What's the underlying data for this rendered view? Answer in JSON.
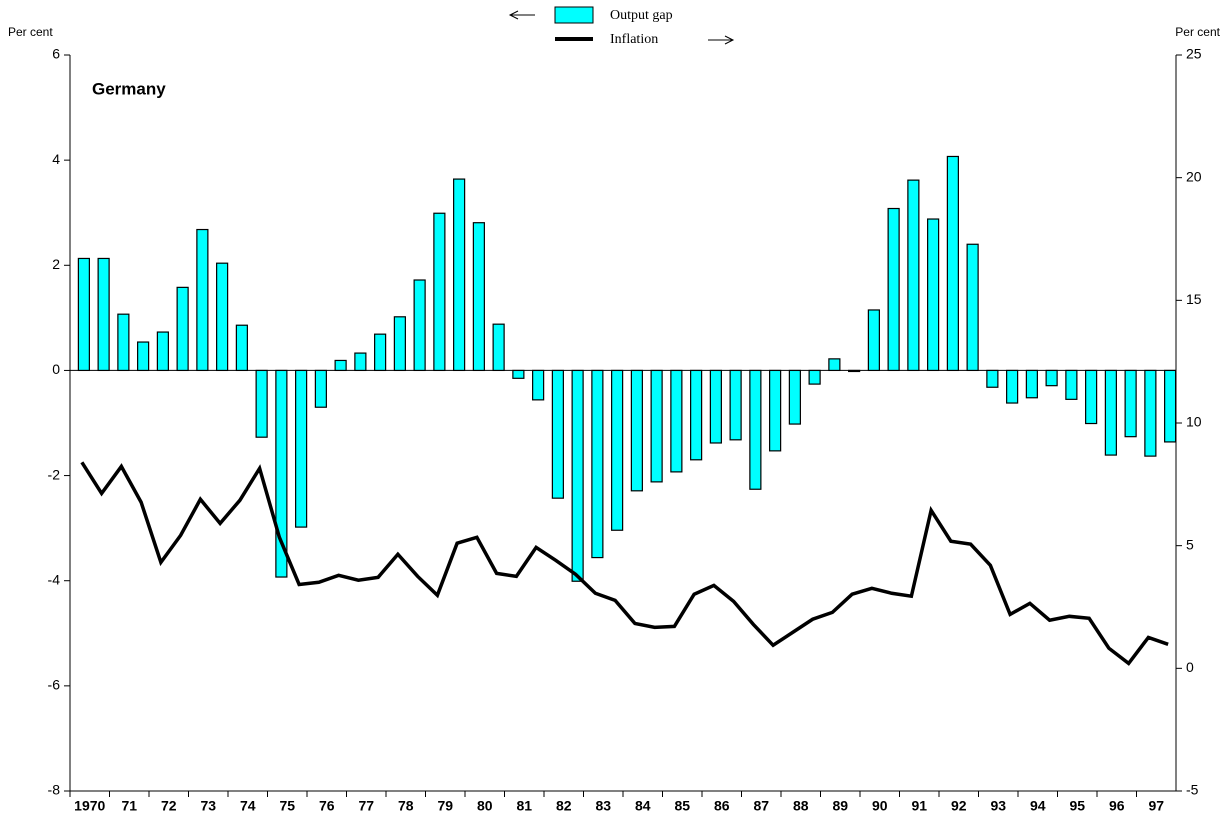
{
  "chart_data": {
    "type": "bar_line",
    "title": "Germany",
    "y_label": "Per cent",
    "y2_label": "Per cent",
    "categories": [
      "1970",
      null,
      "71",
      null,
      "72",
      null,
      "73",
      null,
      "74",
      null,
      "75",
      null,
      "76",
      null,
      "77",
      null,
      "78",
      null,
      "79",
      null,
      "80",
      null,
      "81",
      null,
      "82",
      null,
      "83",
      null,
      "84",
      null,
      "85",
      null,
      "86",
      null,
      "87",
      null,
      "88",
      null,
      "89",
      null,
      "90",
      null,
      "91",
      null,
      "92",
      null,
      "93",
      null,
      "94",
      null,
      "95",
      null,
      "96",
      null,
      "97",
      null
    ],
    "series": [
      {
        "name": "Output gap",
        "color": "#00ffff",
        "type": "bar",
        "values": [
          2.13,
          2.13,
          1.07,
          0.54,
          0.73,
          1.58,
          2.68,
          2.04,
          0.86,
          -1.27,
          -3.93,
          -2.98,
          -0.7,
          0.19,
          0.33,
          0.69,
          1.02,
          1.72,
          2.99,
          3.64,
          2.81,
          0.88,
          -0.15,
          -0.56,
          -2.43,
          -4.01,
          -3.56,
          -3.04,
          -2.29,
          -2.12,
          -1.93,
          -1.7,
          -1.38,
          -1.32,
          -2.26,
          -1.53,
          -1.02,
          -0.26,
          0.22,
          -0.02,
          1.15,
          3.08,
          3.62,
          2.88,
          4.07,
          2.4,
          -0.32,
          -0.62,
          -0.52,
          -0.29,
          -0.55,
          -1.01,
          -1.61,
          -1.26,
          -1.63,
          -1.36
        ]
      },
      {
        "name": "Inflation",
        "color": "#000000",
        "type": "line",
        "axis": "y2",
        "values": [
          8.4,
          7.13,
          8.23,
          6.77,
          4.32,
          5.42,
          6.89,
          5.91,
          6.85,
          8.15,
          5.34,
          3.42,
          3.51,
          3.79,
          3.59,
          3.71,
          4.65,
          3.75,
          2.98,
          5.1,
          5.34,
          3.87,
          3.75,
          4.93,
          4.4,
          3.83,
          3.06,
          2.77,
          1.83,
          1.67,
          1.71,
          3.02,
          3.38,
          2.73,
          1.79,
          0.94,
          1.47,
          2.0,
          2.28,
          3.02,
          3.26,
          3.06,
          2.94,
          6.44,
          5.18,
          5.06,
          4.2,
          2.2,
          2.65,
          1.96,
          2.12,
          2.04,
          0.82,
          0.2,
          1.26,
          0.98
        ]
      }
    ],
    "ylim": [
      -8,
      6
    ],
    "yticks": [
      -8,
      -6,
      -4,
      -2,
      0,
      2,
      4,
      6
    ],
    "y2lim": [
      -5,
      25
    ],
    "y2ticks": [
      -5,
      0,
      5,
      10,
      15,
      20,
      25
    ]
  }
}
